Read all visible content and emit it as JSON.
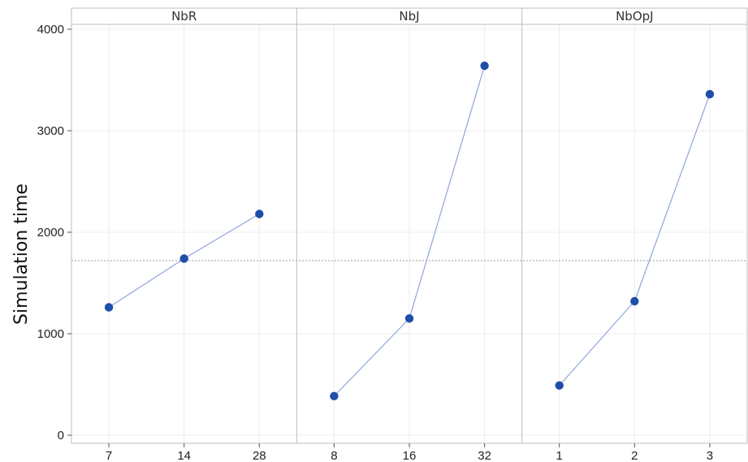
{
  "chart_data": {
    "type": "line",
    "ylabel": "Simulation time",
    "ylim": [
      0,
      4000
    ],
    "yticks": [
      0,
      1000,
      2000,
      3000,
      4000
    ],
    "reference_line": 1720,
    "grid": true,
    "colors": {
      "series": "#1f4ea8",
      "line": "#8fa3e0",
      "reference": "#9a9a9a",
      "grid": "#ececec",
      "frame": "#bdbdbd"
    },
    "panels": [
      {
        "title": "NbR",
        "categories": [
          "7",
          "14",
          "28"
        ],
        "values": [
          1260,
          1740,
          2180
        ]
      },
      {
        "title": "NbJ",
        "categories": [
          "8",
          "16",
          "32"
        ],
        "values": [
          385,
          1150,
          3640
        ]
      },
      {
        "title": "NbOpJ",
        "categories": [
          "1",
          "2",
          "3"
        ],
        "values": [
          490,
          1320,
          3360
        ]
      }
    ]
  }
}
